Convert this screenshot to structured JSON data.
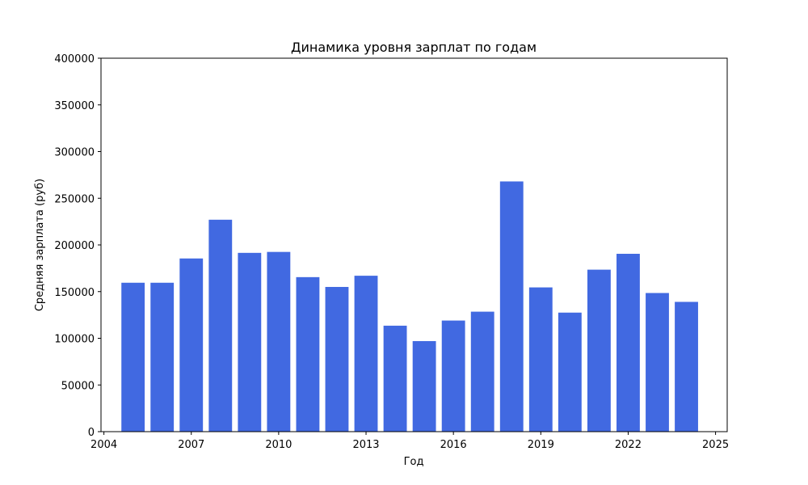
{
  "chart_data": {
    "type": "bar",
    "title": "Динамика уровня зарплат по годам",
    "xlabel": "Год",
    "ylabel": "Средняя зарплата (руб)",
    "x": [
      2005,
      2006,
      2007,
      2008,
      2009,
      2010,
      2011,
      2012,
      2013,
      2014,
      2015,
      2016,
      2017,
      2018,
      2019,
      2020,
      2021,
      2022,
      2023,
      2024
    ],
    "values": [
      159500,
      159500,
      185500,
      227000,
      191500,
      192500,
      165500,
      155000,
      167000,
      113500,
      97000,
      119000,
      128500,
      268000,
      154500,
      127500,
      173500,
      190500,
      148500,
      139000
    ],
    "ylim": [
      0,
      400000
    ],
    "xlim": [
      2003.9,
      2025.4
    ],
    "yticks": [
      0,
      50000,
      100000,
      150000,
      200000,
      250000,
      300000,
      350000,
      400000
    ],
    "xticks": [
      2004,
      2007,
      2010,
      2013,
      2016,
      2019,
      2022,
      2025
    ],
    "bar_color": "#4169e1",
    "grid": false,
    "legend": "none"
  }
}
